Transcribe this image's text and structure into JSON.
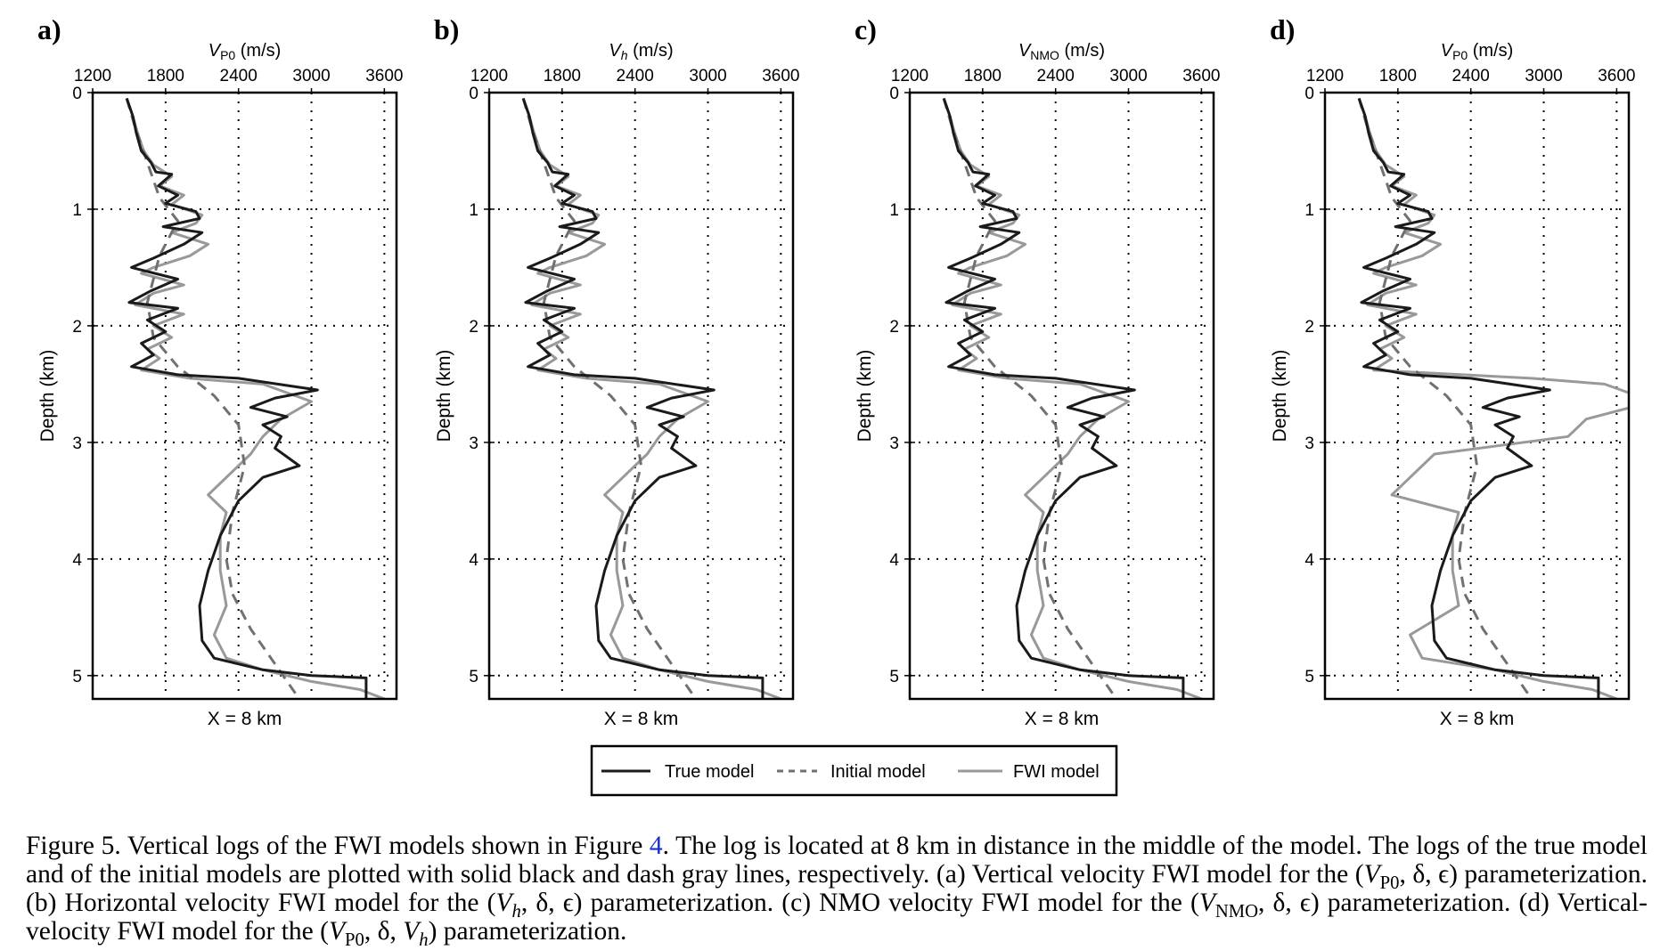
{
  "panels": [
    {
      "id": "a",
      "label": "a)",
      "xlabel_main": "V",
      "xlabel_sub": "P0",
      "xlabel_italic": true,
      "xlabel_unit": " (m/s)",
      "bottom": "X = 8 km",
      "ylabel": "Depth (km)",
      "variant": "a"
    },
    {
      "id": "b",
      "label": "b)",
      "xlabel_main": "V",
      "xlabel_sub": "h",
      "xlabel_italic": true,
      "xlabel_unit": " (m/s)",
      "bottom": "X = 8 km",
      "ylabel": "Depth (km)",
      "variant": "b"
    },
    {
      "id": "c",
      "label": "c)",
      "xlabel_main": "V",
      "xlabel_sub": "NMO",
      "xlabel_italic": true,
      "xlabel_unit": " (m/s)",
      "bottom": "X = 8 km",
      "ylabel": "Depth (km)",
      "variant": "c"
    },
    {
      "id": "d",
      "label": "d)",
      "xlabel_main": "V",
      "xlabel_sub": "P0",
      "xlabel_italic": true,
      "xlabel_unit": " (m/s)",
      "bottom": "X = 8 km",
      "ylabel": "Depth (km)",
      "variant": "d"
    }
  ],
  "legend": {
    "true": "True model",
    "initial": "Initial model",
    "fwi": "FWI model"
  },
  "colors": {
    "true": "#1a1a1a",
    "initial": "#707070",
    "fwi": "#999999"
  },
  "caption": {
    "p1": "Figure 5.  Vertical logs of the FWI models shown in Figure ",
    "ref": "4",
    "p2": ". The log is located at 8 km in distance in the middle of the model. The logs of the true model and of the initial models are plotted with solid black and dash gray lines, respectively. (a) Vertical velocity FWI model for the (",
    "p3": ", δ, ϵ) parameterization. (b) Horizontal velocity FWI model for the (",
    "p4": ", δ, ϵ) parameterization. (c) NMO velocity FWI model for the (",
    "p5": ", δ, ϵ) parameterization. (d) Vertical-velocity FWI model for the (",
    "p6": ", δ, ",
    "p7": ") parameterization.",
    "v": "V",
    "sub_p0": "P0",
    "sub_h": "h",
    "sub_nmo": "NMO"
  },
  "chart_data": {
    "type": "line",
    "xticks": [
      1200,
      1800,
      2400,
      3000,
      3600
    ],
    "yticks": [
      0,
      1,
      2,
      3,
      4,
      5
    ],
    "xlim": [
      1200,
      3700
    ],
    "ylim": [
      5.2,
      0
    ],
    "grid": true,
    "legend_position": "bottom-center",
    "series": [
      {
        "name": "True model",
        "points": [
          [
            1480,
            0.05
          ],
          [
            1530,
            0.2
          ],
          [
            1560,
            0.35
          ],
          [
            1600,
            0.5
          ],
          [
            1680,
            0.6
          ],
          [
            1720,
            0.68
          ],
          [
            1850,
            0.7
          ],
          [
            1740,
            0.8
          ],
          [
            1900,
            0.88
          ],
          [
            1800,
            0.95
          ],
          [
            2050,
            1.02
          ],
          [
            2080,
            1.08
          ],
          [
            1780,
            1.15
          ],
          [
            2100,
            1.2
          ],
          [
            1950,
            1.3
          ],
          [
            1700,
            1.42
          ],
          [
            1520,
            1.5
          ],
          [
            1900,
            1.6
          ],
          [
            1680,
            1.7
          ],
          [
            1500,
            1.8
          ],
          [
            1900,
            1.85
          ],
          [
            1650,
            1.95
          ],
          [
            1800,
            2.05
          ],
          [
            1600,
            2.15
          ],
          [
            1700,
            2.25
          ],
          [
            1520,
            2.35
          ],
          [
            1900,
            2.42
          ],
          [
            2400,
            2.45
          ],
          [
            3050,
            2.55
          ],
          [
            2700,
            2.62
          ],
          [
            2500,
            2.7
          ],
          [
            2800,
            2.78
          ],
          [
            2600,
            2.85
          ],
          [
            2750,
            2.95
          ],
          [
            2700,
            3.05
          ],
          [
            2900,
            3.2
          ],
          [
            2600,
            3.3
          ],
          [
            2400,
            3.5
          ],
          [
            2250,
            3.8
          ],
          [
            2150,
            4.1
          ],
          [
            2080,
            4.4
          ],
          [
            2100,
            4.7
          ],
          [
            2200,
            4.85
          ],
          [
            2600,
            4.95
          ],
          [
            3000,
            5.0
          ],
          [
            3450,
            5.02
          ],
          [
            3450,
            5.2
          ]
        ]
      },
      {
        "name": "Initial model",
        "points": [
          [
            1480,
            0.05
          ],
          [
            1550,
            0.3
          ],
          [
            1650,
            0.6
          ],
          [
            1750,
            0.9
          ],
          [
            1900,
            1.1
          ],
          [
            1750,
            1.4
          ],
          [
            1650,
            1.8
          ],
          [
            1700,
            2.1
          ],
          [
            1900,
            2.35
          ],
          [
            2200,
            2.6
          ],
          [
            2400,
            2.85
          ],
          [
            2450,
            3.2
          ],
          [
            2350,
            3.6
          ],
          [
            2300,
            4.0
          ],
          [
            2350,
            4.3
          ],
          [
            2500,
            4.6
          ],
          [
            2700,
            4.9
          ],
          [
            2900,
            5.2
          ]
        ]
      },
      {
        "name": "FWI model",
        "points": [
          [
            1480,
            0.05
          ],
          [
            1530,
            0.2
          ],
          [
            1570,
            0.35
          ],
          [
            1620,
            0.5
          ],
          [
            1700,
            0.62
          ],
          [
            1850,
            0.72
          ],
          [
            1750,
            0.8
          ],
          [
            1950,
            0.88
          ],
          [
            1850,
            0.96
          ],
          [
            2100,
            1.05
          ],
          [
            2050,
            1.12
          ],
          [
            1850,
            1.2
          ],
          [
            2150,
            1.3
          ],
          [
            2000,
            1.4
          ],
          [
            1700,
            1.5
          ],
          [
            1600,
            1.55
          ],
          [
            1950,
            1.65
          ],
          [
            1700,
            1.72
          ],
          [
            1550,
            1.82
          ],
          [
            1950,
            1.9
          ],
          [
            1700,
            2.0
          ],
          [
            1850,
            2.1
          ],
          [
            1650,
            2.2
          ],
          [
            1750,
            2.28
          ],
          [
            1600,
            2.38
          ],
          [
            2000,
            2.45
          ],
          [
            2600,
            2.5
          ],
          [
            3000,
            2.65
          ],
          [
            2750,
            2.8
          ],
          [
            2600,
            2.95
          ],
          [
            2500,
            3.1
          ],
          [
            2300,
            3.3
          ],
          [
            2150,
            3.45
          ],
          [
            2300,
            3.6
          ],
          [
            2250,
            3.8
          ],
          [
            2250,
            4.1
          ],
          [
            2300,
            4.4
          ],
          [
            2200,
            4.65
          ],
          [
            2300,
            4.85
          ],
          [
            2600,
            4.95
          ],
          [
            3000,
            5.05
          ],
          [
            3400,
            5.12
          ],
          [
            3600,
            5.2
          ]
        ]
      }
    ]
  }
}
